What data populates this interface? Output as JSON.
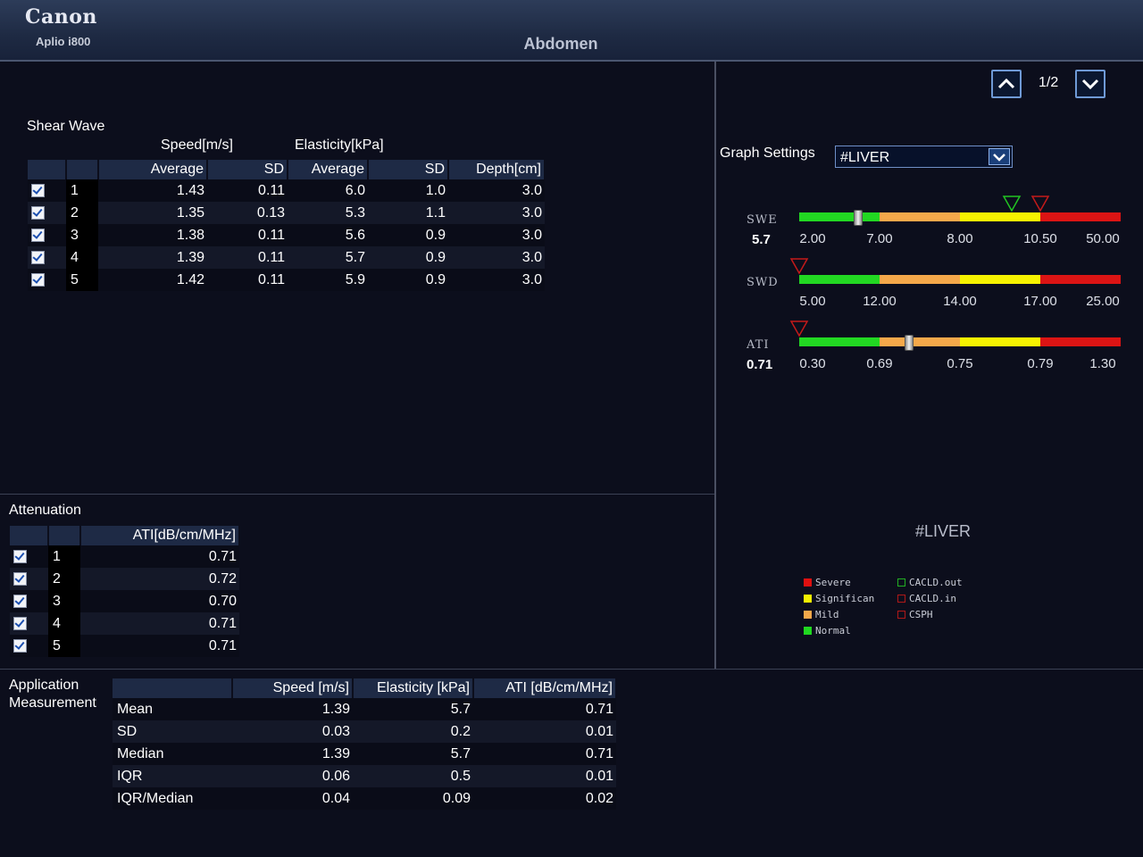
{
  "header": {
    "brand": "Canon",
    "model": "Aplio i800",
    "preset": "Abdomen"
  },
  "shear_wave": {
    "title": "Shear Wave",
    "group_speed": "Speed[m/s]",
    "group_elasticity": "Elasticity[kPa]",
    "columns": [
      "Average",
      "SD",
      "Average",
      "SD",
      "Depth[cm]"
    ],
    "rows": [
      {
        "idx": "1",
        "speed_avg": "1.43",
        "speed_sd": "0.11",
        "elast_avg": "6.0",
        "elast_sd": "1.0",
        "depth": "3.0",
        "checked": true
      },
      {
        "idx": "2",
        "speed_avg": "1.35",
        "speed_sd": "0.13",
        "elast_avg": "5.3",
        "elast_sd": "1.1",
        "depth": "3.0",
        "checked": true
      },
      {
        "idx": "3",
        "speed_avg": "1.38",
        "speed_sd": "0.11",
        "elast_avg": "5.6",
        "elast_sd": "0.9",
        "depth": "3.0",
        "checked": true
      },
      {
        "idx": "4",
        "speed_avg": "1.39",
        "speed_sd": "0.11",
        "elast_avg": "5.7",
        "elast_sd": "0.9",
        "depth": "3.0",
        "checked": true
      },
      {
        "idx": "5",
        "speed_avg": "1.42",
        "speed_sd": "0.11",
        "elast_avg": "5.9",
        "elast_sd": "0.9",
        "depth": "3.0",
        "checked": true
      }
    ]
  },
  "attenuation": {
    "title": "Attenuation",
    "column": "ATI[dB/cm/MHz]",
    "rows": [
      {
        "idx": "1",
        "ati": "0.71",
        "checked": true
      },
      {
        "idx": "2",
        "ati": "0.72",
        "checked": true
      },
      {
        "idx": "3",
        "ati": "0.70",
        "checked": true
      },
      {
        "idx": "4",
        "ati": "0.71",
        "checked": true
      },
      {
        "idx": "5",
        "ati": "0.71",
        "checked": true
      }
    ]
  },
  "application": {
    "title_line1": "Application",
    "title_line2": "Measurement",
    "columns": [
      "Speed [m/s]",
      "Elasticity [kPa]",
      "ATI [dB/cm/MHz]"
    ],
    "rows": [
      {
        "label": "Mean",
        "speed": "1.39",
        "elast": "5.7",
        "ati": "0.71"
      },
      {
        "label": "SD",
        "speed": "0.03",
        "elast": "0.2",
        "ati": "0.01"
      },
      {
        "label": "Median",
        "speed": "1.39",
        "elast": "5.7",
        "ati": "0.71"
      },
      {
        "label": "IQR",
        "speed": "0.06",
        "elast": "0.5",
        "ati": "0.01"
      },
      {
        "label": "IQR/Median",
        "speed": "0.04",
        "elast": "0.09",
        "ati": "0.02"
      }
    ]
  },
  "right_panel": {
    "page_indicator": "1/2",
    "graph_settings_label": "Graph Settings",
    "graph_select_value": "#LIVER",
    "graph_name": "#LIVER",
    "gauges": [
      {
        "id": "swe",
        "label": "SWE",
        "value": "5.7",
        "ticks": [
          "2.00",
          "7.00",
          "8.00",
          "10.50",
          "50.00"
        ],
        "thumb_fraction": 0.18,
        "triangles": [
          {
            "fraction": 0.66,
            "color": "#22c422"
          },
          {
            "fraction": 0.75,
            "color": "#c41a1a"
          }
        ]
      },
      {
        "id": "swd",
        "label": "SWD",
        "value": "",
        "ticks": [
          "5.00",
          "12.00",
          "14.00",
          "17.00",
          "25.00"
        ],
        "thumb_fraction": null,
        "triangles": [
          {
            "fraction": 0.0,
            "color": "#c41a1a"
          }
        ]
      },
      {
        "id": "ati",
        "label": "ATI",
        "value": "0.71",
        "ticks": [
          "0.30",
          "0.69",
          "0.75",
          "0.79",
          "1.30"
        ],
        "thumb_fraction": 0.34,
        "triangles": [
          {
            "fraction": 0.0,
            "color": "#c41a1a"
          }
        ]
      }
    ],
    "segment_colors": [
      "#22d822",
      "#f5a84a",
      "#f6f200",
      "#dc1414"
    ],
    "legend": [
      {
        "label": "Severe",
        "color": "#e01010",
        "style": "filled"
      },
      {
        "label": "Significan",
        "color": "#f4f000",
        "style": "filled"
      },
      {
        "label": "Mild",
        "color": "#f5a84a",
        "style": "filled"
      },
      {
        "label": "Normal",
        "color": "#20d820",
        "style": "filled"
      },
      {
        "label": "CACLD.out",
        "color": "#22b022",
        "style": "outline"
      },
      {
        "label": "CACLD.in",
        "color": "#b01818",
        "style": "outline"
      },
      {
        "label": "CSPH",
        "color": "#b01818",
        "style": "outline"
      }
    ]
  }
}
